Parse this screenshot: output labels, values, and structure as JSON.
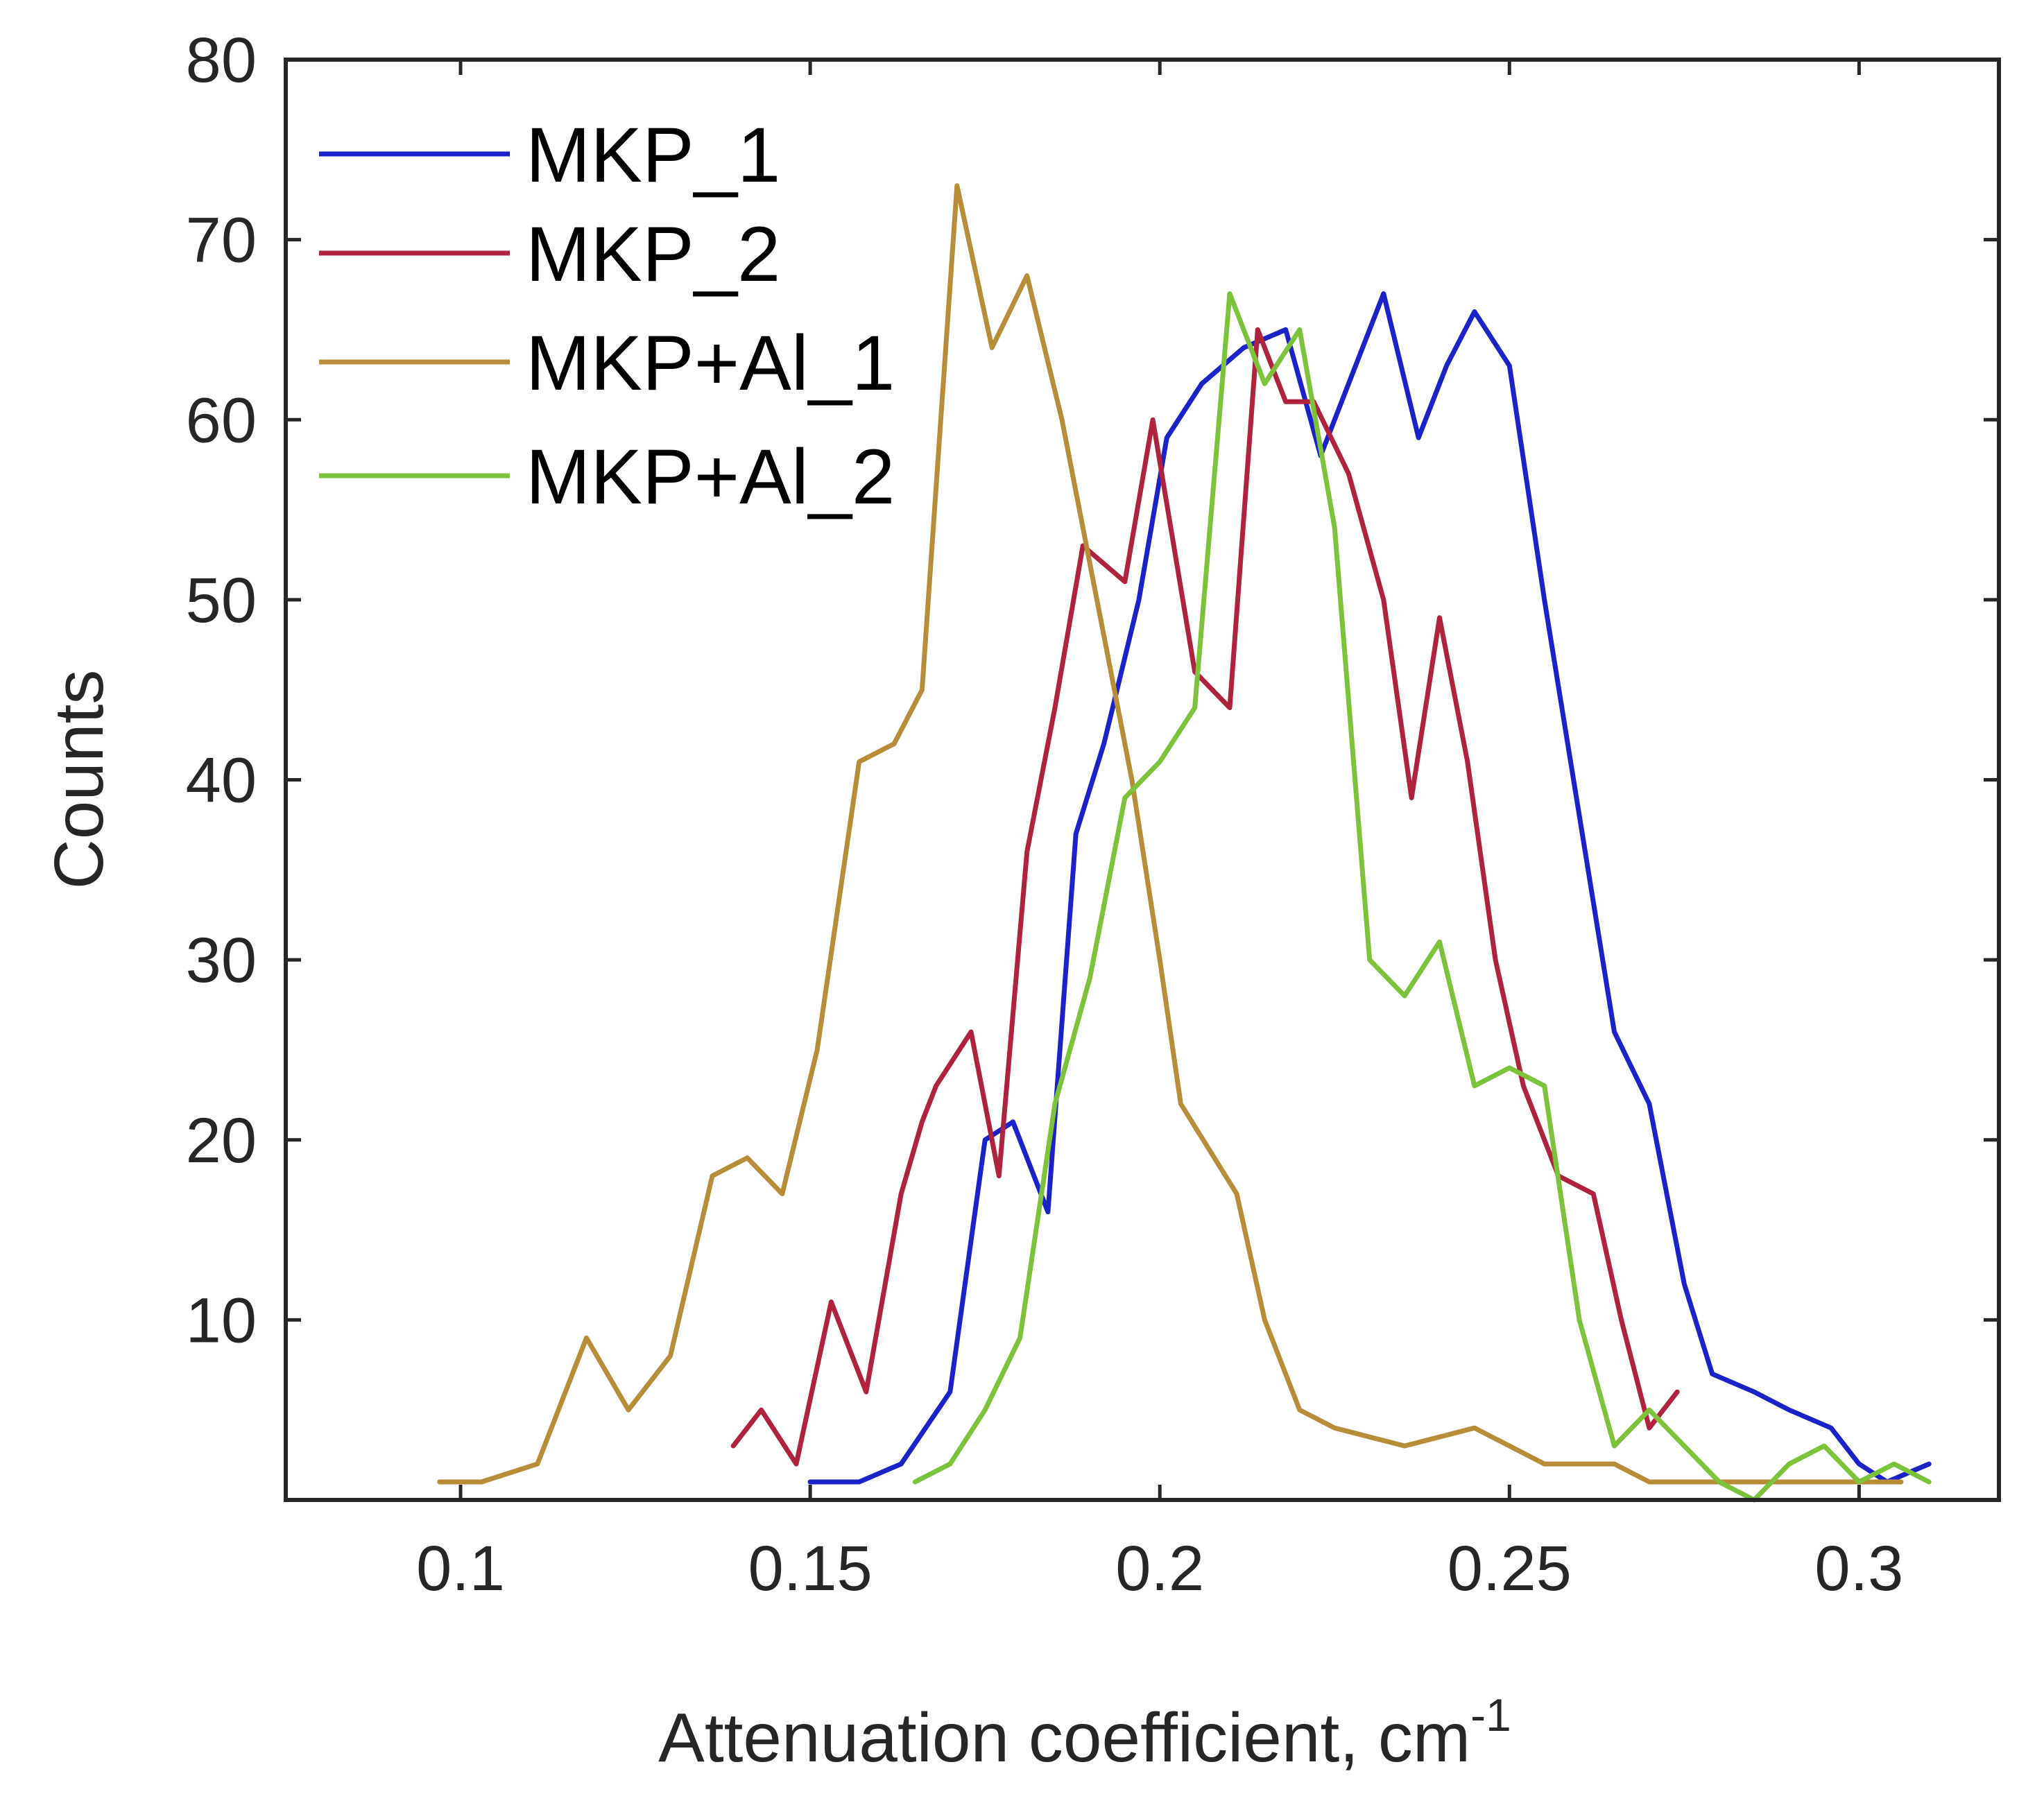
{
  "chart_data": {
    "type": "line",
    "title": "",
    "xlabel": "Attenuation coefficient, cm",
    "xlabel_superscript": "-1",
    "ylabel": "Counts",
    "xlim": [
      0.075,
      0.32
    ],
    "ylim": [
      0,
      80
    ],
    "x_ticks": [
      0.1,
      0.15,
      0.2,
      0.25,
      0.3
    ],
    "x_tick_labels": [
      "0.1",
      "0.15",
      "0.2",
      "0.25",
      "0.3"
    ],
    "y_ticks": [
      10,
      20,
      30,
      40,
      50,
      60,
      70,
      80
    ],
    "y_tick_labels": [
      "10",
      "20",
      "30",
      "40",
      "50",
      "60",
      "70",
      "80"
    ],
    "grid": false,
    "legend_position": "top-left",
    "series": [
      {
        "name": "MKP_1",
        "color": "#1a22c8",
        "x": [
          0.15,
          0.157,
          0.163,
          0.17,
          0.175,
          0.179,
          0.184,
          0.188,
          0.192,
          0.197,
          0.201,
          0.206,
          0.212,
          0.218,
          0.223,
          0.227,
          0.232,
          0.237,
          0.241,
          0.245,
          0.25,
          0.255,
          0.26,
          0.265,
          0.27,
          0.275,
          0.279,
          0.285,
          0.29,
          0.296,
          0.3,
          0.304,
          0.31
        ],
        "y": [
          1,
          1,
          2,
          6,
          20,
          21,
          16,
          37,
          42,
          50,
          59,
          62,
          64,
          65,
          58,
          62,
          67,
          59,
          63,
          66,
          63,
          50,
          38,
          26,
          22,
          12,
          7,
          6,
          5,
          4,
          2,
          1,
          2
        ]
      },
      {
        "name": "MKP_2",
        "color": "#b0233f",
        "x": [
          0.139,
          0.143,
          0.148,
          0.153,
          0.158,
          0.163,
          0.166,
          0.168,
          0.173,
          0.177,
          0.181,
          0.185,
          0.189,
          0.195,
          0.199,
          0.205,
          0.21,
          0.214,
          0.218,
          0.222,
          0.227,
          0.232,
          0.236,
          0.24,
          0.244,
          0.248,
          0.252,
          0.257,
          0.262,
          0.266,
          0.27,
          0.274
        ],
        "y": [
          3,
          5,
          2,
          11,
          6,
          17,
          21,
          23,
          26,
          18,
          36,
          44,
          53,
          51,
          60,
          46,
          44,
          65,
          61,
          61,
          57,
          50,
          39,
          49,
          41,
          30,
          23,
          18,
          17,
          10,
          4,
          6
        ]
      },
      {
        "name": "MKP+Al_1",
        "color": "#b88d3a",
        "x": [
          0.097,
          0.103,
          0.111,
          0.118,
          0.124,
          0.13,
          0.136,
          0.141,
          0.146,
          0.151,
          0.157,
          0.162,
          0.166,
          0.171,
          0.176,
          0.181,
          0.186,
          0.191,
          0.196,
          0.2,
          0.203,
          0.211,
          0.215,
          0.22,
          0.225,
          0.235,
          0.245,
          0.255,
          0.265,
          0.27,
          0.275,
          0.28,
          0.286,
          0.293,
          0.3,
          0.306
        ],
        "y": [
          1,
          1,
          2,
          9,
          5,
          8,
          18,
          19,
          17,
          25,
          41,
          42,
          45,
          73,
          64,
          68,
          60,
          50,
          40,
          30,
          22,
          17,
          10,
          5,
          4,
          3,
          4,
          2,
          2,
          1,
          1,
          1,
          1,
          1,
          1,
          1
        ]
      },
      {
        "name": "MKP+Al_2",
        "color": "#7cc23b",
        "x": [
          0.165,
          0.17,
          0.175,
          0.18,
          0.185,
          0.19,
          0.195,
          0.2,
          0.205,
          0.21,
          0.215,
          0.22,
          0.225,
          0.23,
          0.235,
          0.24,
          0.245,
          0.25,
          0.255,
          0.26,
          0.265,
          0.27,
          0.275,
          0.28,
          0.285,
          0.29,
          0.295,
          0.3,
          0.305,
          0.31
        ],
        "y": [
          1,
          2,
          5,
          9,
          22,
          29,
          39,
          41,
          44,
          67,
          62,
          65,
          54,
          30,
          28,
          31,
          23,
          24,
          23,
          10,
          3,
          5,
          3,
          1,
          0,
          2,
          3,
          1,
          2,
          1
        ]
      }
    ]
  }
}
